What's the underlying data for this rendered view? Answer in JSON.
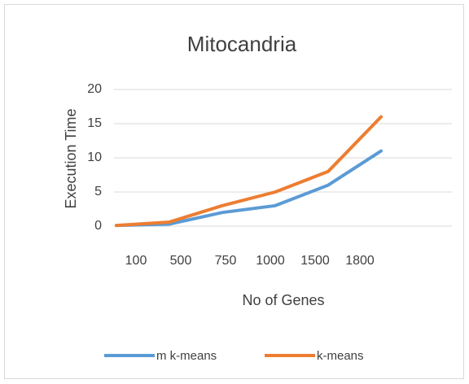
{
  "chart_data": {
    "type": "line",
    "title": "Mitocandria",
    "x_label": "No of Genes",
    "y_label": "Execution Time",
    "categories": [
      "100",
      "500",
      "750",
      "1000",
      "1500",
      "1800"
    ],
    "series": [
      {
        "name": "m k-means",
        "color": "#5b9bd5",
        "values": [
          0.1,
          0.3,
          2,
          3,
          6,
          11
        ]
      },
      {
        "name": "k-means",
        "color": "#ed7d31",
        "values": [
          0.1,
          0.6,
          3,
          5,
          8,
          16
        ]
      }
    ],
    "ylim": [
      0,
      20
    ],
    "yticks": [
      0,
      5,
      10,
      15,
      20
    ],
    "grid": true,
    "legend": "bottom"
  }
}
